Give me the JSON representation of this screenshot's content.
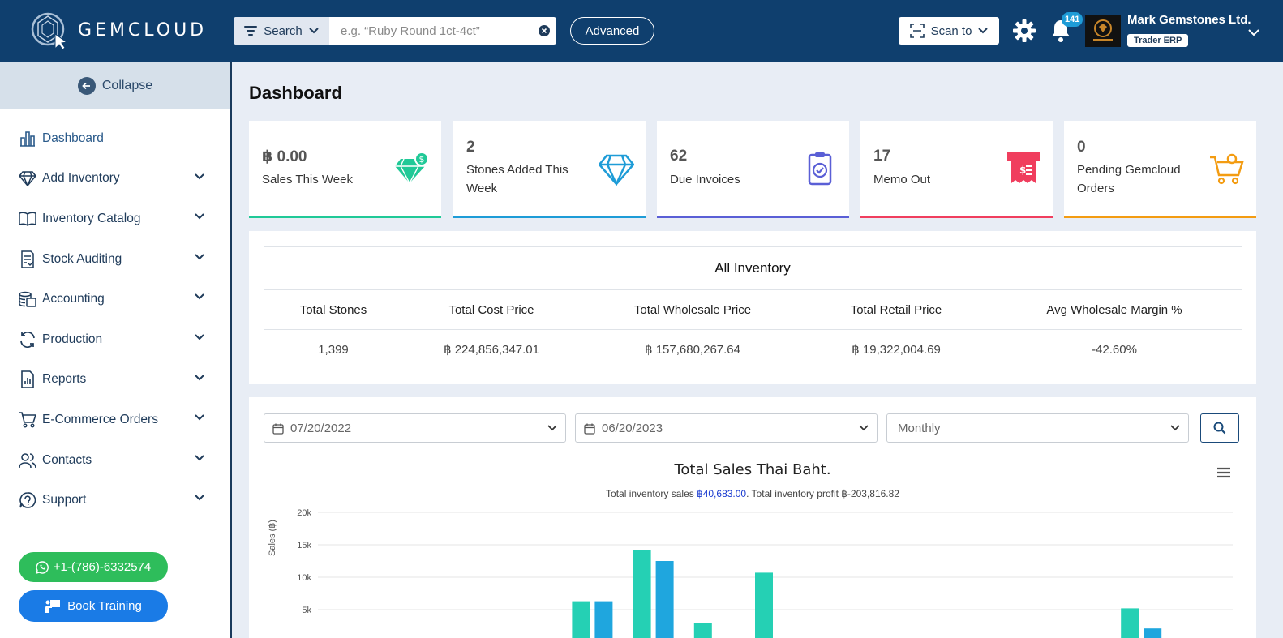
{
  "header": {
    "brand": "GEMCLOUD",
    "search_type": "Search",
    "search_placeholder": "e.g. “Ruby Round 1ct-4ct”",
    "advanced_label": "Advanced",
    "scan_label": "Scan to",
    "notifications_count": "141",
    "company_name": "Mark Gemstones Ltd.",
    "account_type": "Trader ERP"
  },
  "sidebar": {
    "collapse_label": "Collapse",
    "items": [
      {
        "label": "Dashboard",
        "icon": "bar-chart-icon",
        "active": true
      },
      {
        "label": "Add Inventory",
        "icon": "diamond-icon"
      },
      {
        "label": "Inventory Catalog",
        "icon": "book-icon"
      },
      {
        "label": "Stock Auditing",
        "icon": "checklist-icon"
      },
      {
        "label": "Accounting",
        "icon": "coins-icon"
      },
      {
        "label": "Production",
        "icon": "refresh-icon"
      },
      {
        "label": "Reports",
        "icon": "report-icon"
      },
      {
        "label": "E-Commerce Orders",
        "icon": "cart-icon"
      },
      {
        "label": "Contacts",
        "icon": "users-icon"
      },
      {
        "label": "Support",
        "icon": "question-icon"
      }
    ],
    "whatsapp_label": "+1-(786)-6332574",
    "training_label": "Book Training"
  },
  "main": {
    "title": "Dashboard",
    "cards": [
      {
        "value": "฿ 0.00",
        "label": "Sales This Week",
        "color": "#20c997"
      },
      {
        "value": "2",
        "label": "Stones Added This Week",
        "color": "#1e9cd7"
      },
      {
        "value": "62",
        "label": "Due Invoices",
        "color": "#5a5fd6"
      },
      {
        "value": "17",
        "label": "Memo Out",
        "color": "#f03e5e"
      },
      {
        "value": "0",
        "label": "Pending Gemcloud Orders",
        "color": "#f39c12"
      }
    ],
    "inventory": {
      "title": "All Inventory",
      "headers": [
        "Total Stones",
        "Total Cost Price",
        "Total Wholesale Price",
        "Total Retail Price",
        "Avg Wholesale Margin %"
      ],
      "values": [
        "1,399",
        "฿ 224,856,347.01",
        "฿ 157,680,267.64",
        "฿ 19,322,004.69",
        "-42.60%"
      ]
    },
    "filters": {
      "from_date": "07/20/2022",
      "to_date": "06/20/2023",
      "period": "Monthly"
    }
  },
  "chart_data": {
    "type": "bar",
    "title": "Total Sales Thai Baht.",
    "subtitle_prefix": "Total inventory sales ",
    "subtitle_sales": "฿40,683.00",
    "subtitle_mid": ". Total inventory profit ",
    "subtitle_profit": "฿-203,816.82",
    "ylabel": "Sales (฿)",
    "ylim": [
      0,
      20000
    ],
    "yticks": [
      "20k",
      "15k",
      "10k",
      "5k"
    ],
    "yticks_values": [
      20000,
      15000,
      10000,
      5000
    ],
    "series": [
      {
        "color": "#25d0b4",
        "values": [
          0,
          0,
          0,
          0,
          6300,
          14200,
          2900,
          10700,
          0,
          0,
          0,
          0,
          0,
          5200,
          0
        ]
      },
      {
        "color": "#1fa6de",
        "values": [
          0,
          0,
          0,
          0,
          6300,
          12500,
          0,
          0,
          0,
          0,
          0,
          0,
          0,
          2100,
          0
        ]
      }
    ]
  }
}
